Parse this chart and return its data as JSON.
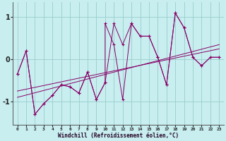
{
  "xlabel": "Windchill (Refroidissement éolien,°C)",
  "bg_color": "#c8eef0",
  "grid_color": "#99cccc",
  "line_color": "#880066",
  "xlim": [
    -0.5,
    23.5
  ],
  "ylim": [
    -1.55,
    1.35
  ],
  "yticks": [
    -1,
    0,
    1
  ],
  "xticks": [
    0,
    1,
    2,
    3,
    4,
    5,
    6,
    7,
    8,
    9,
    10,
    11,
    12,
    13,
    14,
    15,
    16,
    17,
    18,
    19,
    20,
    21,
    22,
    23
  ],
  "series1": [
    [
      0,
      -0.35
    ],
    [
      1,
      0.2
    ],
    [
      2,
      -1.3
    ],
    [
      3,
      -1.05
    ],
    [
      4,
      -0.85
    ],
    [
      5,
      -0.6
    ],
    [
      6,
      -0.65
    ],
    [
      7,
      -0.8
    ],
    [
      8,
      -0.3
    ],
    [
      9,
      -0.95
    ],
    [
      10,
      -0.55
    ],
    [
      11,
      0.85
    ],
    [
      12,
      0.35
    ],
    [
      13,
      0.85
    ],
    [
      14,
      0.55
    ],
    [
      15,
      0.55
    ],
    [
      16,
      0.05
    ],
    [
      17,
      -0.6
    ],
    [
      18,
      1.1
    ],
    [
      19,
      0.75
    ],
    [
      20,
      0.05
    ],
    [
      21,
      -0.15
    ],
    [
      22,
      0.05
    ],
    [
      23,
      0.05
    ]
  ],
  "series2": [
    [
      0,
      -0.35
    ],
    [
      1,
      0.2
    ],
    [
      2,
      -1.3
    ],
    [
      3,
      -1.05
    ],
    [
      4,
      -0.85
    ],
    [
      5,
      -0.6
    ],
    [
      6,
      -0.65
    ],
    [
      7,
      -0.8
    ],
    [
      8,
      -0.3
    ],
    [
      9,
      -0.95
    ],
    [
      10,
      -0.55
    ],
    [
      10,
      0.85
    ],
    [
      11,
      0.35
    ],
    [
      12,
      -0.95
    ],
    [
      13,
      0.85
    ],
    [
      14,
      0.55
    ],
    [
      15,
      0.55
    ],
    [
      16,
      0.05
    ],
    [
      17,
      -0.6
    ],
    [
      18,
      1.1
    ],
    [
      19,
      0.75
    ],
    [
      20,
      0.05
    ],
    [
      21,
      -0.15
    ],
    [
      22,
      0.05
    ],
    [
      23,
      0.05
    ]
  ],
  "series_main": [
    [
      0,
      -0.35
    ],
    [
      1,
      0.2
    ],
    [
      2,
      -1.3
    ],
    [
      3,
      -1.05
    ],
    [
      4,
      -0.85
    ],
    [
      5,
      -0.6
    ],
    [
      6,
      -0.65
    ],
    [
      7,
      -0.8
    ],
    [
      7,
      -0.35
    ],
    [
      8,
      -0.3
    ],
    [
      9,
      -0.95
    ],
    [
      10,
      0.85
    ],
    [
      11,
      0.35
    ],
    [
      12,
      -0.95
    ],
    [
      13,
      0.85
    ],
    [
      14,
      0.55
    ],
    [
      15,
      0.55
    ],
    [
      16,
      0.05
    ],
    [
      17,
      -0.6
    ],
    [
      18,
      1.1
    ],
    [
      19,
      0.75
    ],
    [
      20,
      0.05
    ],
    [
      21,
      -0.15
    ],
    [
      22,
      0.05
    ],
    [
      23,
      0.05
    ]
  ],
  "trend_line": [
    [
      0,
      -0.9
    ],
    [
      23,
      0.35
    ]
  ]
}
